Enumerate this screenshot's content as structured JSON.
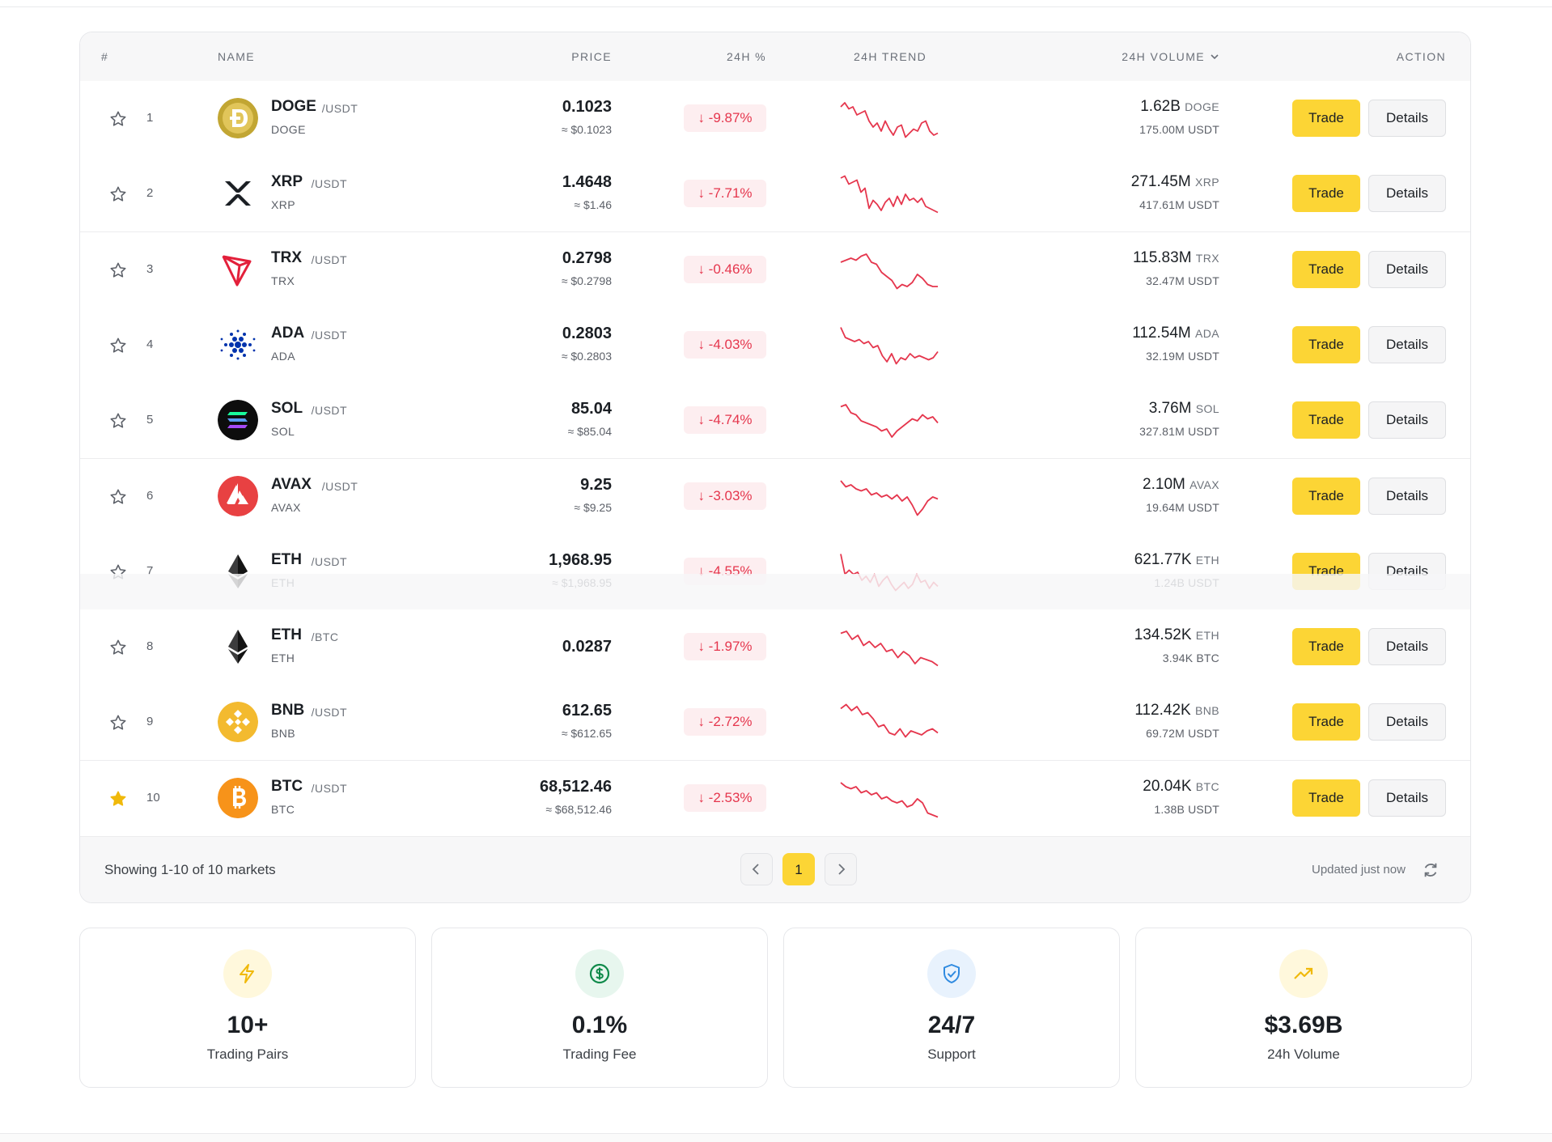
{
  "header": {
    "rank": "#",
    "name": "NAME",
    "price": "PRICE",
    "change": "24H %",
    "trend": "24H TREND",
    "volume": "24H VOLUME",
    "action": "ACTION"
  },
  "rows": [
    {
      "rank": "1",
      "symbol": "DOGE",
      "quote": "/USDT",
      "base": "DOGE",
      "price": "0.1023",
      "approx": "≈ $0.1023",
      "change": "↓ -9.87%",
      "vol": "1.62B",
      "vol_unit": "DOGE",
      "vol2": "175.00M USDT",
      "favorite": false,
      "trade": "Trade",
      "details": "Details",
      "logo": "doge-logo"
    },
    {
      "rank": "2",
      "symbol": "XRP",
      "quote": "/USDT",
      "base": "XRP",
      "price": "1.4648",
      "approx": "≈ $1.46",
      "change": "↓ -7.71%",
      "vol": "271.45M",
      "vol_unit": "XRP",
      "vol2": "417.61M USDT",
      "favorite": false,
      "trade": "Trade",
      "details": "Details",
      "logo": "xrp-logo"
    },
    {
      "rank": "3",
      "symbol": "TRX",
      "quote": "/USDT",
      "base": "TRX",
      "price": "0.2798",
      "approx": "≈ $0.2798",
      "change": "↓ -0.46%",
      "vol": "115.83M",
      "vol_unit": "TRX",
      "vol2": "32.47M USDT",
      "favorite": false,
      "trade": "Trade",
      "details": "Details",
      "logo": "trx-logo"
    },
    {
      "rank": "4",
      "symbol": "ADA",
      "quote": "/USDT",
      "base": "ADA",
      "price": "0.2803",
      "approx": "≈ $0.2803",
      "change": "↓ -4.03%",
      "vol": "112.54M",
      "vol_unit": "ADA",
      "vol2": "32.19M USDT",
      "favorite": false,
      "trade": "Trade",
      "details": "Details",
      "logo": "ada-logo"
    },
    {
      "rank": "5",
      "symbol": "SOL",
      "quote": "/USDT",
      "base": "SOL",
      "price": "85.04",
      "approx": "≈ $85.04",
      "change": "↓ -4.74%",
      "vol": "3.76M",
      "vol_unit": "SOL",
      "vol2": "327.81M USDT",
      "favorite": false,
      "trade": "Trade",
      "details": "Details",
      "logo": "sol-logo"
    },
    {
      "rank": "6",
      "symbol": "AVAX",
      "quote": "/USDT",
      "base": "AVAX",
      "price": "9.25",
      "approx": "≈ $9.25",
      "change": "↓ -3.03%",
      "vol": "2.10M",
      "vol_unit": "AVAX",
      "vol2": "19.64M USDT",
      "favorite": false,
      "trade": "Trade",
      "details": "Details",
      "logo": "avax-logo"
    },
    {
      "rank": "7",
      "symbol": "ETH",
      "quote": "/USDT",
      "base": "ETH",
      "price": "1,968.95",
      "approx": "≈ $1,968.95",
      "change": "↓ -4.55%",
      "vol": "621.77K",
      "vol_unit": "ETH",
      "vol2": "1.24B USDT",
      "favorite": false,
      "trade": "Trade",
      "details": "Details",
      "logo": "eth-logo"
    },
    {
      "rank": "8",
      "symbol": "ETH",
      "quote": "/BTC",
      "base": "ETH",
      "price": "0.0287",
      "approx": "",
      "change": "↓ -1.97%",
      "vol": "134.52K",
      "vol_unit": "ETH",
      "vol2": "3.94K BTC",
      "favorite": false,
      "trade": "Trade",
      "details": "Details",
      "logo": "eth-logo"
    },
    {
      "rank": "9",
      "symbol": "BNB",
      "quote": "/USDT",
      "base": "BNB",
      "price": "612.65",
      "approx": "≈ $612.65",
      "change": "↓ -2.72%",
      "vol": "112.42K",
      "vol_unit": "BNB",
      "vol2": "69.72M USDT",
      "favorite": false,
      "trade": "Trade",
      "details": "Details",
      "logo": "bnb-logo"
    },
    {
      "rank": "10",
      "symbol": "BTC",
      "quote": "/USDT",
      "base": "BTC",
      "price": "68,512.46",
      "approx": "≈ $68,512.46",
      "change": "↓ -2.53%",
      "vol": "20.04K",
      "vol_unit": "BTC",
      "vol2": "1.38B USDT",
      "favorite": true,
      "trade": "Trade",
      "details": "Details",
      "logo": "btc-logo"
    }
  ],
  "footer": {
    "showing": "Showing 1-10 of 10 markets",
    "current_page": "1",
    "updated": "Updated just now"
  },
  "stats": [
    {
      "value": "10+",
      "label": "Trading Pairs",
      "icon": "lightning-icon"
    },
    {
      "value": "0.1%",
      "label": "Trading Fee",
      "icon": "dollar-icon"
    },
    {
      "value": "24/7",
      "label": "Support",
      "icon": "shield-icon"
    },
    {
      "value": "$3.69B",
      "label": "24h Volume",
      "icon": "trending-up-icon"
    }
  ],
  "colors": {
    "accent": "#fcd535",
    "negative": "#e5364d",
    "negative_bg": "#fdeef0",
    "star_active": "#f0b90b"
  }
}
